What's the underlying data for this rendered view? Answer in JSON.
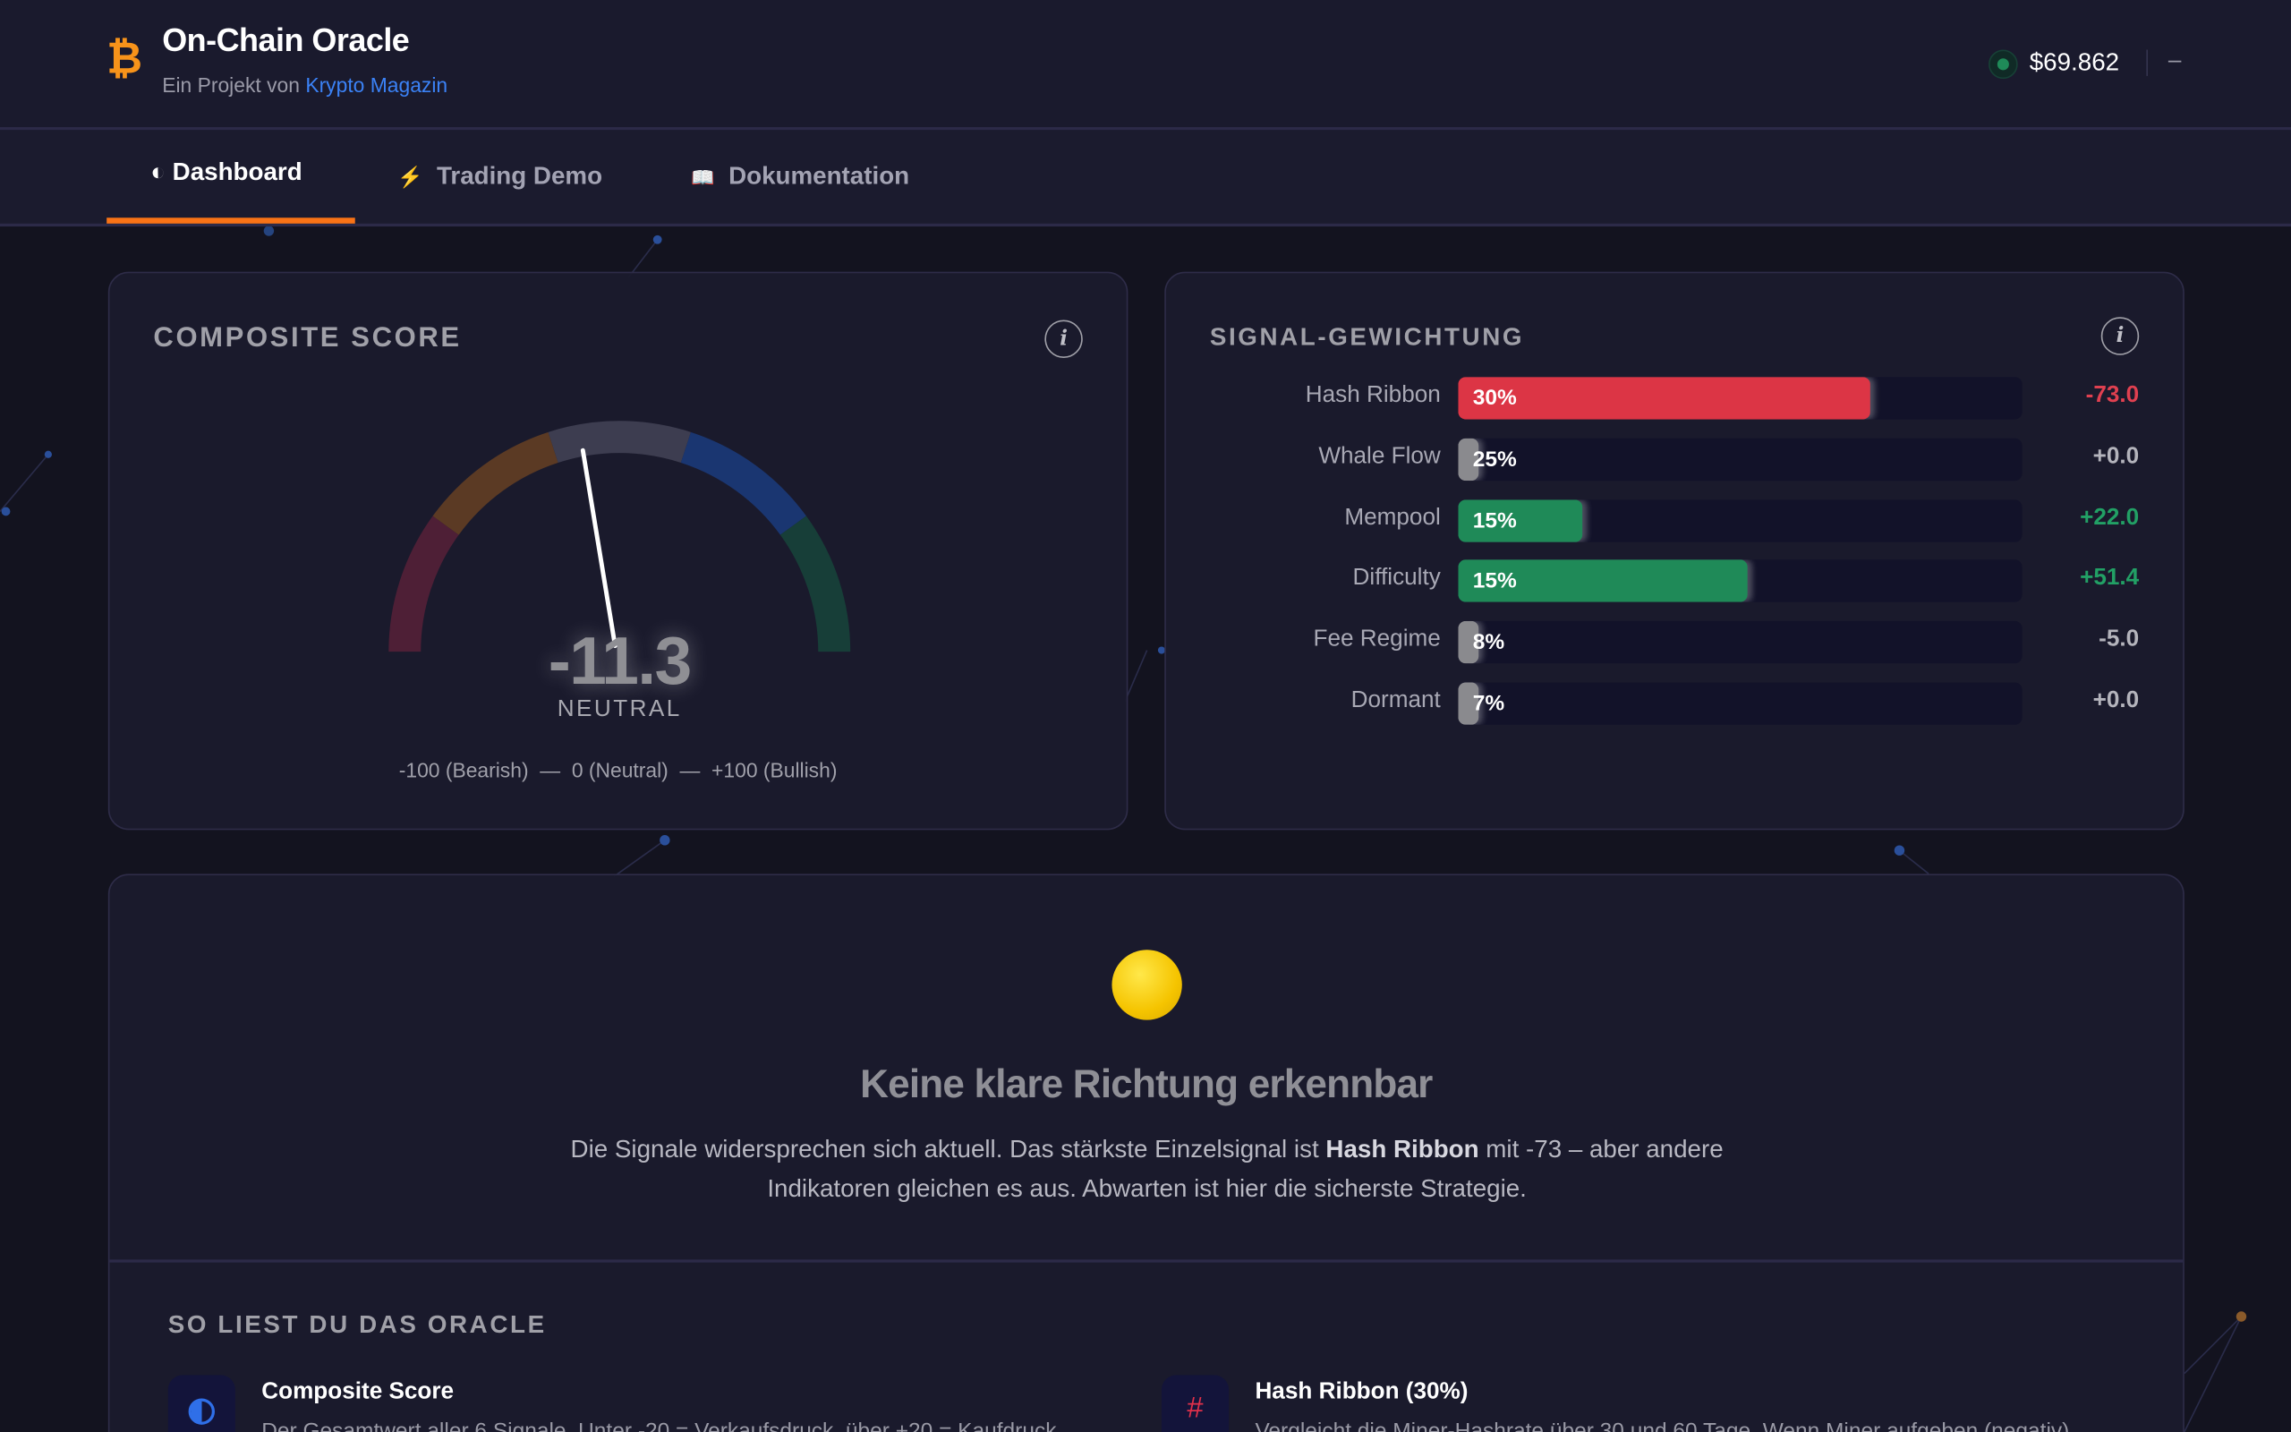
{
  "header": {
    "logo_icon": "bitcoin-icon",
    "title": "On-Chain Oracle",
    "subtitle_prefix": "Ein Projekt von",
    "subtitle_link": "Krypto Magazin",
    "price": "$69.862",
    "price_status_color": "#1f8a58",
    "menu_dash": "–"
  },
  "tabs": [
    {
      "icon": "half-circle-icon",
      "glyph": "◐",
      "label": "Dashboard",
      "active": true
    },
    {
      "icon": "lightning-icon",
      "glyph": "⚡",
      "label": "Trading Demo",
      "active": false
    },
    {
      "icon": "book-icon",
      "glyph": "📖",
      "label": "Dokumentation",
      "active": false
    }
  ],
  "composite": {
    "title": "COMPOSITE SCORE",
    "score": -11.3,
    "score_label": "-11.3",
    "state": "NEUTRAL",
    "scale_text": "-100 (Bearish)  —  0 (Neutral)  —  +100 (Bullish)",
    "range": [
      -100,
      100
    ],
    "zones": [
      {
        "from": -100,
        "to": -60,
        "color": "#4e1f36"
      },
      {
        "from": -60,
        "to": -20,
        "color": "#5b3a24"
      },
      {
        "from": -20,
        "to": 20,
        "color": "#3d3d50"
      },
      {
        "from": 20,
        "to": 60,
        "color": "#1a3671"
      },
      {
        "from": 60,
        "to": 100,
        "color": "#173e38"
      }
    ]
  },
  "signals": {
    "title": "SIGNAL-GEWICHTUNG",
    "colors": {
      "negative": "#dc3545",
      "positive": "#1f8a58",
      "neutral": "#8a8a8e"
    },
    "rows": [
      {
        "name": "Hash Ribbon",
        "weight": "30%",
        "value": -73.0,
        "value_label": "-73.0",
        "tone": "negative"
      },
      {
        "name": "Whale Flow",
        "weight": "25%",
        "value": 0.0,
        "value_label": "+0.0",
        "tone": "neutral"
      },
      {
        "name": "Mempool",
        "weight": "15%",
        "value": 22.0,
        "value_label": "+22.0",
        "tone": "positive"
      },
      {
        "name": "Difficulty",
        "weight": "15%",
        "value": 51.4,
        "value_label": "+51.4",
        "tone": "positive"
      },
      {
        "name": "Fee Regime",
        "weight": "8%",
        "value": -5.0,
        "value_label": "-5.0",
        "tone": "neutral"
      },
      {
        "name": "Dormant",
        "weight": "7%",
        "value": 0.0,
        "value_label": "+0.0",
        "tone": "neutral"
      }
    ]
  },
  "verdict": {
    "icon": "yellow-circle-icon",
    "headline": "Keine klare Richtung erkennbar",
    "text_1": "Die Signale widersprechen sich aktuell. Das stärkste Einzelsignal ist",
    "text_bold": "Hash Ribbon",
    "text_2": "mit -73 – aber andere Indikatoren gleichen es aus. Abwarten ist hier die sicherste Strategie."
  },
  "guide": {
    "title": "SO LIEST DU DAS ORACLE",
    "items": [
      {
        "icon": "half-circle-icon",
        "title": "Composite Score",
        "text": "Der Gesamtwert aller 6 Signale. Unter -20 = Verkaufsdruck, über +20 = Kaufdruck."
      },
      {
        "icon": "hash-icon",
        "title": "Hash Ribbon (30%)",
        "text": "Vergleicht die Miner-Hashrate über 30 und 60 Tage. Wenn Miner aufgeben (negativ)"
      }
    ]
  }
}
